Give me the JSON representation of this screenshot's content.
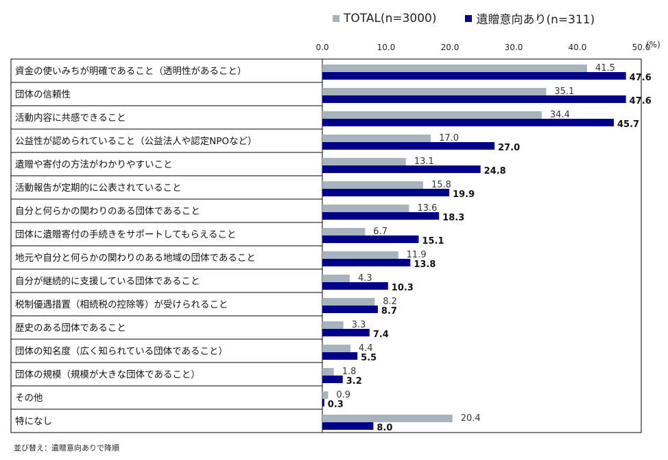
{
  "legend": {
    "total_label": "TOTAL(n=3000)",
    "heir_label": "遺贈意向あり(n=311)"
  },
  "unit_label": "(%)",
  "footnote": "並び替え：遺贈意向ありで降順",
  "colors": {
    "total": "#a7b3bd",
    "heir": "#00008b"
  },
  "chart_data": {
    "type": "bar",
    "orientation": "horizontal",
    "xlim": [
      0,
      50
    ],
    "ticks": [
      "0.0",
      "10.0",
      "20.0",
      "30.0",
      "40.0",
      "50.0"
    ],
    "categories": [
      "資金の使いみちが明確であること（透明性があること）",
      "団体の信頼性",
      "活動内容に共感できること",
      "公益性が認められていること（公益法人や認定NPOなど）",
      "遺贈や寄付の方法がわかりやすいこと",
      "活動報告が定期的に公表されていること",
      "自分と何らかの関わりのある団体であること",
      "団体に遺贈寄付の手続きをサポートしてもらえること",
      "地元や自分と何らかの関わりのある地域の団体であること",
      "自分が継続的に支援している団体であること",
      "税制優遇措置（相続税の控除等）が受けられること",
      "歴史のある団体であること",
      "団体の知名度（広く知られている団体であること）",
      "団体の規模（規模が大きな団体であること）",
      "その他",
      "特になし"
    ],
    "series": [
      {
        "name": "TOTAL(n=3000)",
        "values": [
          41.5,
          35.1,
          34.4,
          17.0,
          13.1,
          15.8,
          13.6,
          6.7,
          11.9,
          4.3,
          8.2,
          3.3,
          4.4,
          1.8,
          0.9,
          20.4
        ],
        "labels": [
          "41.5",
          "35.1",
          "34.4",
          "17.0",
          "13.1",
          "15.8",
          "13.6",
          "6.7",
          "11.9",
          "4.3",
          "8.2",
          "3.3",
          "4.4",
          "1.8",
          "0.9",
          "20.4"
        ]
      },
      {
        "name": "遺贈意向あり(n=311)",
        "values": [
          47.6,
          47.6,
          45.7,
          27.0,
          24.8,
          19.9,
          18.3,
          15.1,
          13.8,
          10.3,
          8.7,
          7.4,
          5.5,
          3.2,
          0.3,
          8.0
        ],
        "labels": [
          "47.6",
          "47.6",
          "45.7",
          "27.0",
          "24.8",
          "19.9",
          "18.3",
          "15.1",
          "13.8",
          "10.3",
          "8.7",
          "7.4",
          "5.5",
          "3.2",
          "0.3",
          "8.0"
        ]
      }
    ]
  }
}
